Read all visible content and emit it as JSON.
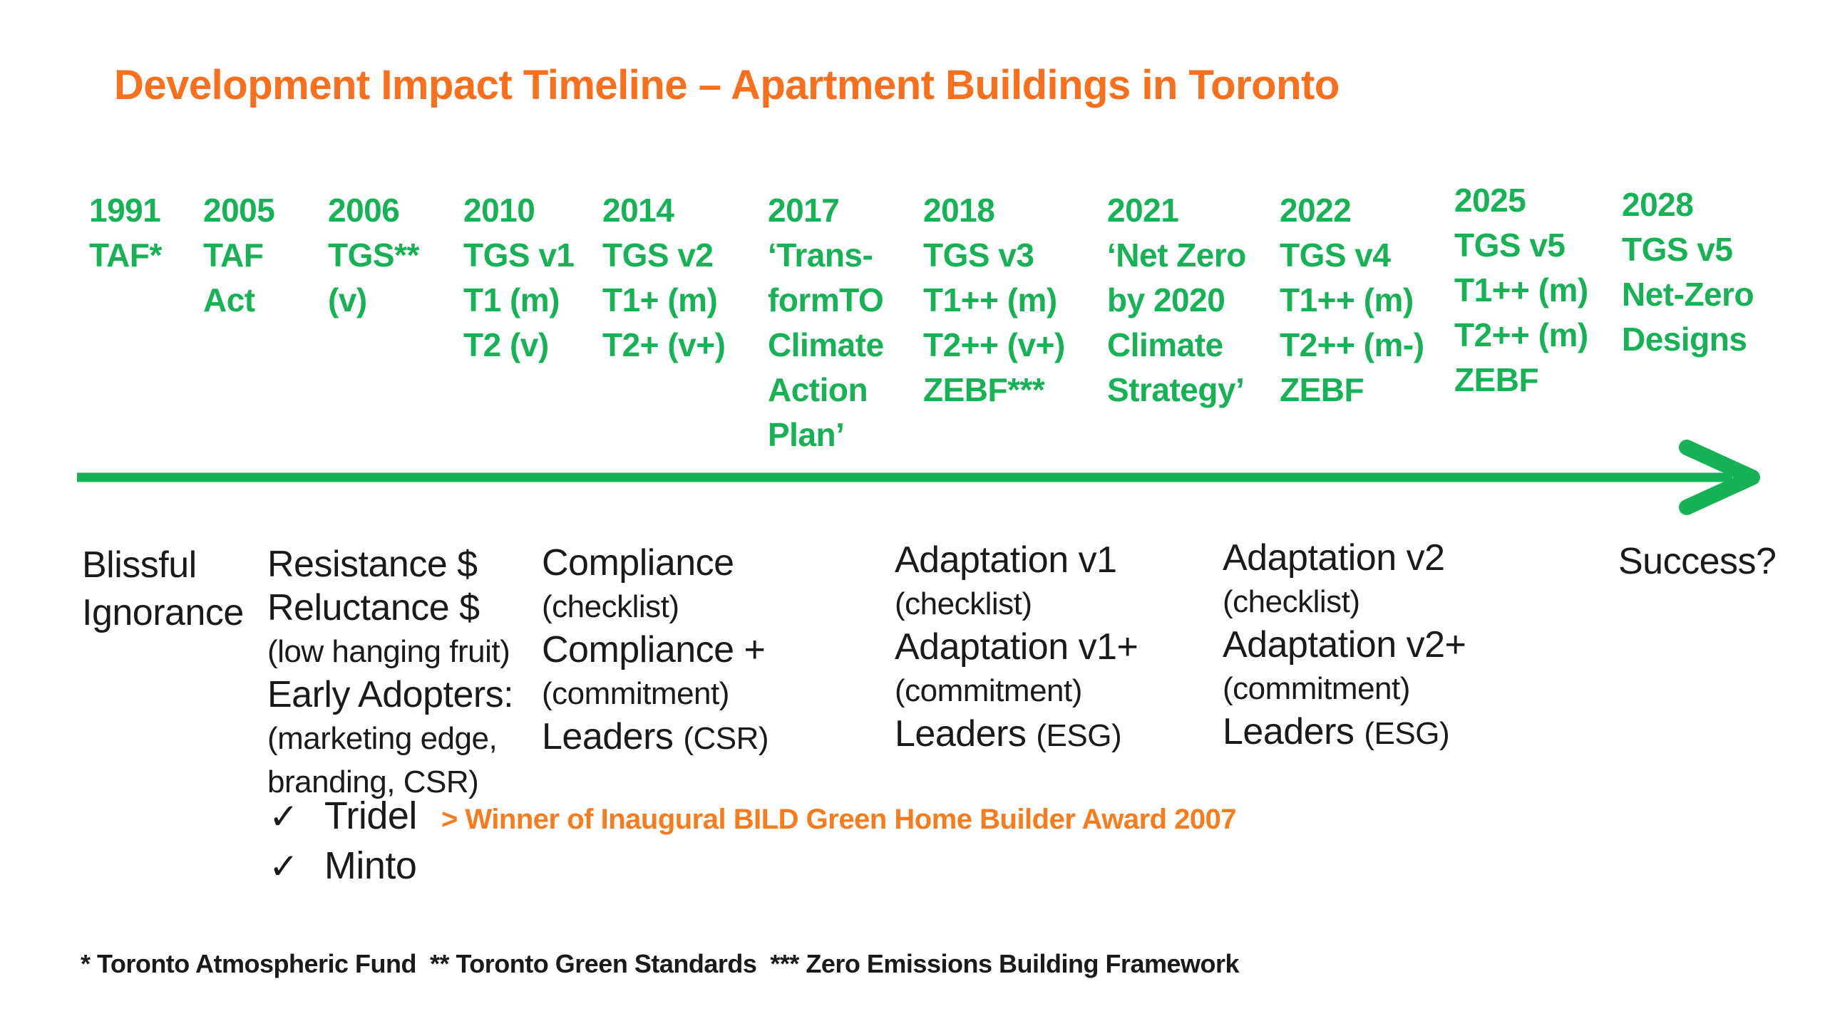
{
  "title": "Development Impact Timeline – Apartment Buildings in Toronto",
  "colors": {
    "accent_green": "#17B256",
    "accent_orange": "#F8701E",
    "text_black": "#1A1A1A"
  },
  "timeline": {
    "arrow_icon": "right-arrow",
    "columns": [
      {
        "year": "1991",
        "lines": [
          "TAF*"
        ]
      },
      {
        "year": "2005",
        "lines": [
          "TAF",
          "Act"
        ]
      },
      {
        "year": "2006",
        "lines": [
          "TGS**",
          "(v)"
        ]
      },
      {
        "year": "2010",
        "lines": [
          "TGS v1",
          "T1 (m)",
          "T2 (v)"
        ]
      },
      {
        "year": "2014",
        "lines": [
          "TGS v2",
          "T1+ (m)",
          "T2+ (v+)"
        ]
      },
      {
        "year": "2017",
        "lines": [
          "‘Trans-",
          "formTO",
          "Climate",
          "Action",
          "Plan’"
        ]
      },
      {
        "year": "2018",
        "lines": [
          "TGS v3",
          "T1++ (m)",
          "T2++ (v+)",
          "ZEBF***"
        ]
      },
      {
        "year": "2021",
        "lines": [
          "‘Net Zero",
          "by 2020",
          "Climate",
          "Strategy’"
        ]
      },
      {
        "year": "2022",
        "lines": [
          "TGS v4",
          "T1++ (m)",
          "T2++ (m-)",
          "ZEBF"
        ]
      },
      {
        "year": "2025",
        "lines": [
          "TGS v5",
          "T1++ (m)",
          "T2++ (m)",
          "ZEBF"
        ]
      },
      {
        "year": "2028",
        "lines": [
          "TGS v5",
          "Net-Zero",
          "Designs"
        ]
      }
    ]
  },
  "stages": [
    {
      "name": "blissful-ignorance",
      "lines": [
        {
          "t": "Blissful",
          "s": "lg"
        },
        {
          "t": "Ignorance",
          "s": "lg"
        }
      ]
    },
    {
      "name": "resistance-reluctance",
      "lines": [
        {
          "t": "Resistance $",
          "s": "lg"
        },
        {
          "t": "Reluctance $",
          "s": "lg"
        },
        {
          "t": "(low hanging fruit)",
          "s": "sm"
        },
        {
          "t": "Early Adopters:",
          "s": "lg"
        },
        {
          "t": "(marketing edge,",
          "s": "sm"
        },
        {
          "t": "branding, CSR)",
          "s": "sm"
        }
      ]
    },
    {
      "name": "compliance",
      "lines": [
        {
          "t": "Compliance",
          "s": "lg"
        },
        {
          "t": "(checklist)",
          "s": "sm"
        },
        {
          "t": "Compliance +",
          "s": "lg"
        },
        {
          "t": "(commitment)",
          "s": "sm"
        },
        {
          "t": "Leaders ",
          "s": "lg",
          "tail": "(CSR)"
        }
      ]
    },
    {
      "name": "adaptation-v1",
      "lines": [
        {
          "t": "Adaptation v1",
          "s": "lg"
        },
        {
          "t": "(checklist)",
          "s": "sm"
        },
        {
          "t": "Adaptation v1+",
          "s": "lg"
        },
        {
          "t": "(commitment)",
          "s": "sm"
        },
        {
          "t": "Leaders ",
          "s": "lg",
          "tail": "(ESG)"
        }
      ]
    },
    {
      "name": "adaptation-v2",
      "lines": [
        {
          "t": "Adaptation v2",
          "s": "lg"
        },
        {
          "t": "(checklist)",
          "s": "sm"
        },
        {
          "t": "Adaptation v2+",
          "s": "lg"
        },
        {
          "t": "(commitment)",
          "s": "sm"
        },
        {
          "t": "Leaders ",
          "s": "lg",
          "tail": "(ESG)"
        }
      ]
    },
    {
      "name": "success",
      "lines": [
        {
          "t": "Success?",
          "s": "lg"
        }
      ]
    }
  ],
  "builders": {
    "check_icon": "✓",
    "rows": [
      {
        "name": "Tridel",
        "note": "> Winner of Inaugural BILD Green Home Builder Award 2007"
      },
      {
        "name": "Minto"
      }
    ]
  },
  "footnote": "* Toronto Atmospheric Fund  ** Toronto Green Standards  *** Zero Emissions Building Framework"
}
